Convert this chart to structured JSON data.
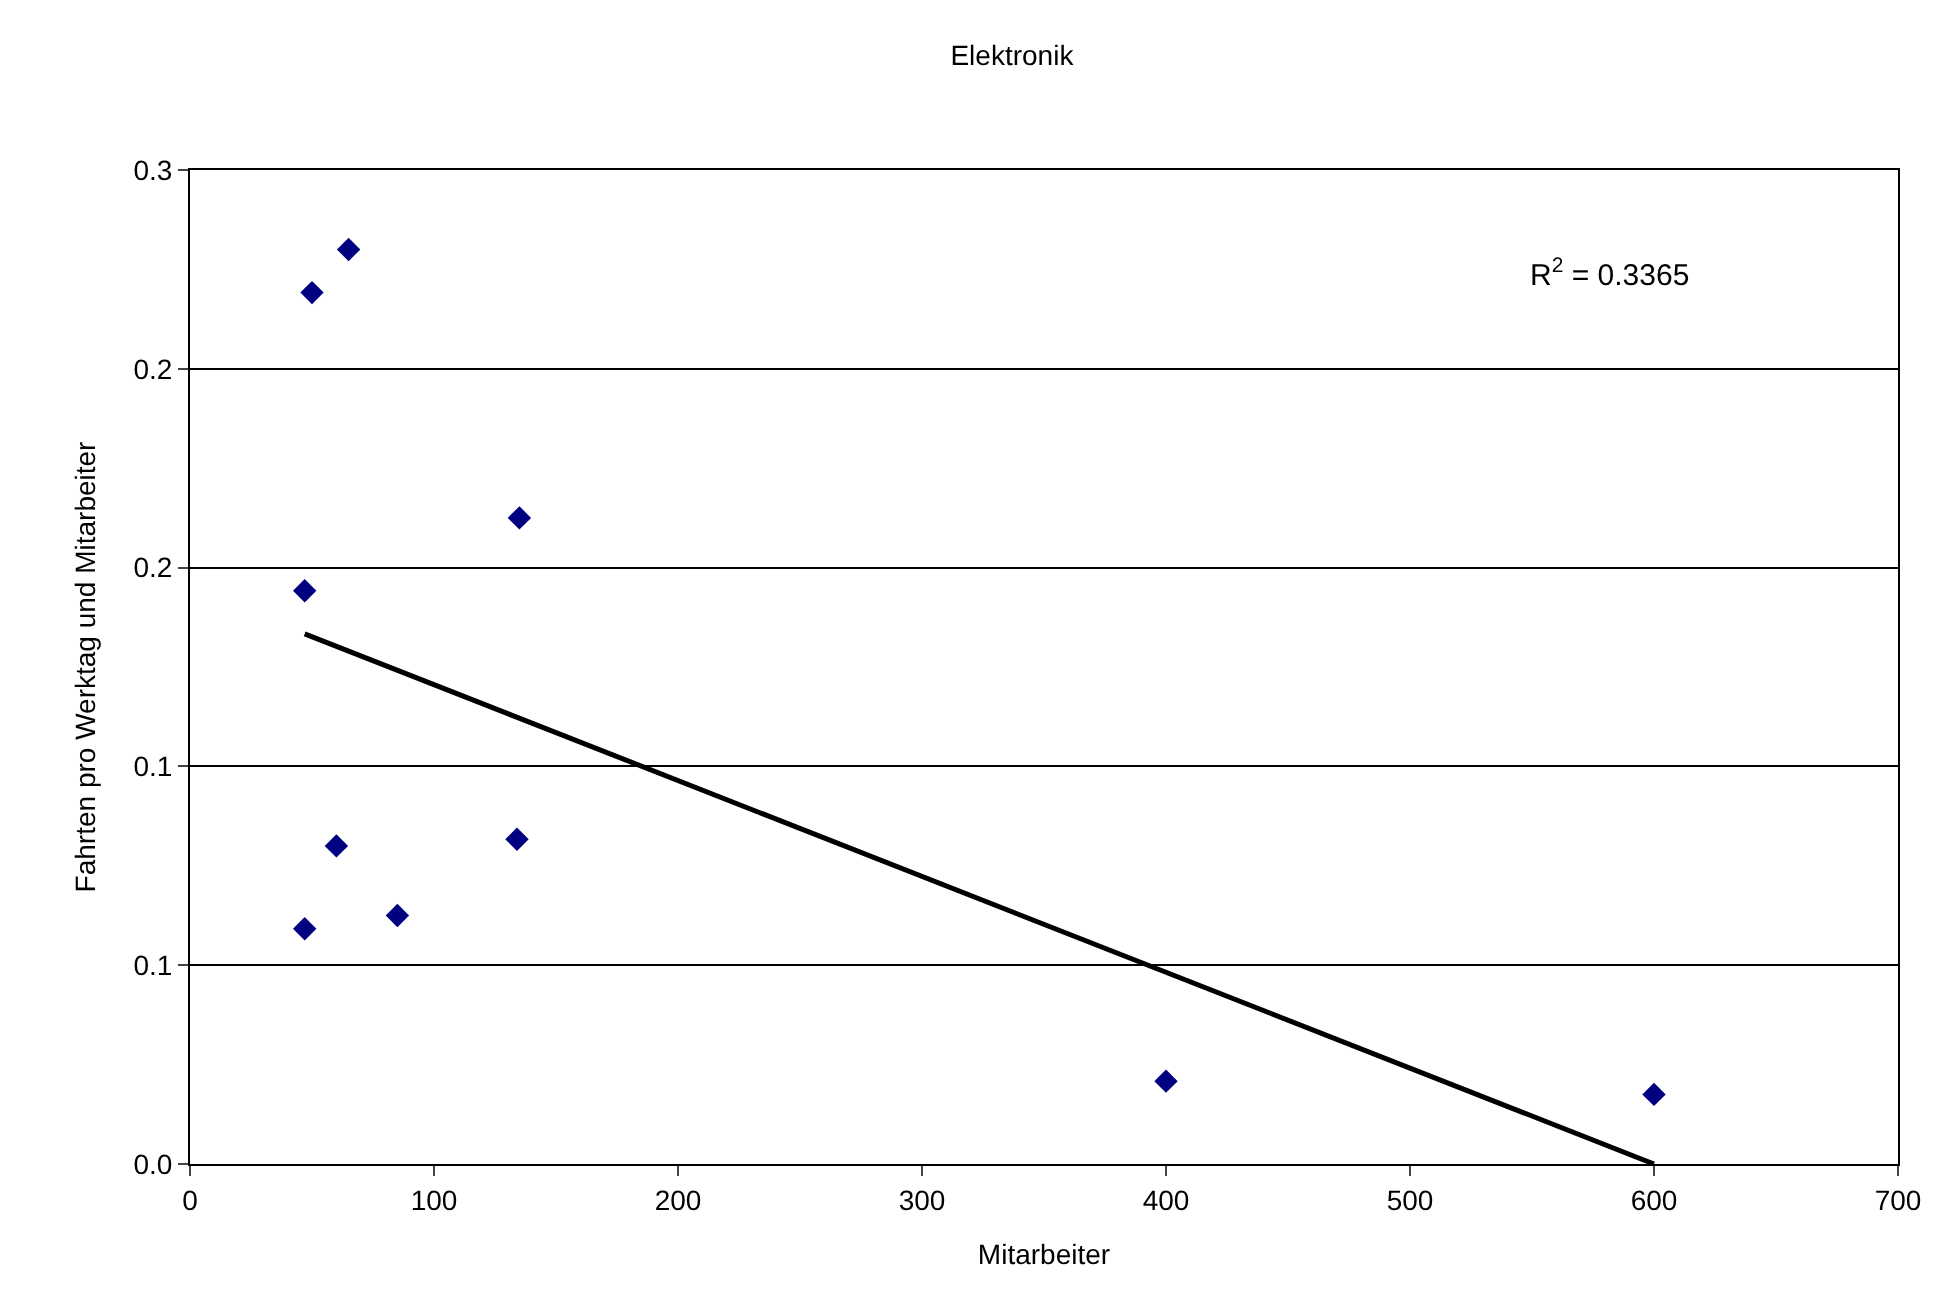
{
  "chart_data": {
    "type": "scatter",
    "title": "Elektronik",
    "xlabel": "Mitarbeiter",
    "ylabel": "Fahrten pro Werktag und Mitarbeiter",
    "series": [
      {
        "color": "#000080",
        "marker": "diamond",
        "x": [
          47,
          50,
          65,
          135,
          47,
          60,
          85,
          134,
          400,
          600
        ],
        "values": [
          0.173,
          0.263,
          0.276,
          0.195,
          0.071,
          0.096,
          0.075,
          0.098,
          0.025,
          0.021
        ]
      },
      {
        "type": "line",
        "marker": "none",
        "color": "#000000",
        "x": [
          47,
          600
        ],
        "values": [
          0.16,
          0.0
        ]
      }
    ],
    "xlim": [
      0,
      700
    ],
    "xticks": [
      0,
      100,
      200,
      300,
      400,
      500,
      600,
      700
    ],
    "ylim": [
      0,
      0.3
    ],
    "yticks": [
      {
        "value": 0,
        "label": "0.0"
      },
      {
        "value": 0.06,
        "label": "0.1"
      },
      {
        "value": 0.12,
        "label": "0.1"
      },
      {
        "value": 0.18,
        "label": "0.2"
      },
      {
        "value": 0.24,
        "label": "0.2"
      },
      {
        "value": 0.3,
        "label": "0.3"
      }
    ],
    "annotations": [
      "R$^{2}$ = 0.3365"
    ],
    "grid": "y",
    "legend": false
  }
}
